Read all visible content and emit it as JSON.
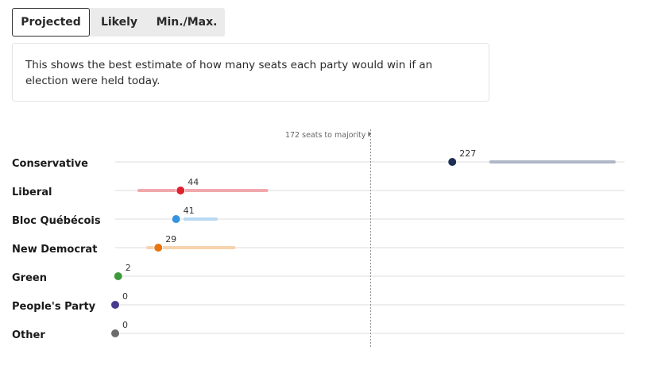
{
  "tabs": [
    {
      "label": "Projected",
      "active": true
    },
    {
      "label": "Likely",
      "active": false
    },
    {
      "label": "Min./Max.",
      "active": false
    }
  ],
  "description": "This shows the best estimate of how many seats each party would win if an election were held today.",
  "chart_data": {
    "type": "scatter",
    "majority_label": "172 seats to majority",
    "majority_value": 172,
    "xlim": [
      0,
      343
    ],
    "grid": true,
    "parties": [
      {
        "name": "Conservative",
        "value": 227,
        "low": 253,
        "high": 336,
        "color": "#1e2f55",
        "range_color": "#b0b7c7"
      },
      {
        "name": "Liberal",
        "value": 44,
        "low": 16,
        "high": 102,
        "color": "#e0202e",
        "range_color": "#f1a9ad"
      },
      {
        "name": "Bloc Québécois",
        "value": 41,
        "low": 47,
        "high": 68,
        "color": "#3593e0",
        "range_color": "#b8d9f3"
      },
      {
        "name": "New Democrat",
        "value": 29,
        "low": 22,
        "high": 80,
        "color": "#e8740f",
        "range_color": "#f8d3ae"
      },
      {
        "name": "Green",
        "value": 2,
        "color": "#3d9a3a"
      },
      {
        "name": "People's Party",
        "value": 0,
        "color": "#4a3a8e"
      },
      {
        "name": "Other",
        "value": 0,
        "color": "#6b6b6b"
      }
    ]
  }
}
